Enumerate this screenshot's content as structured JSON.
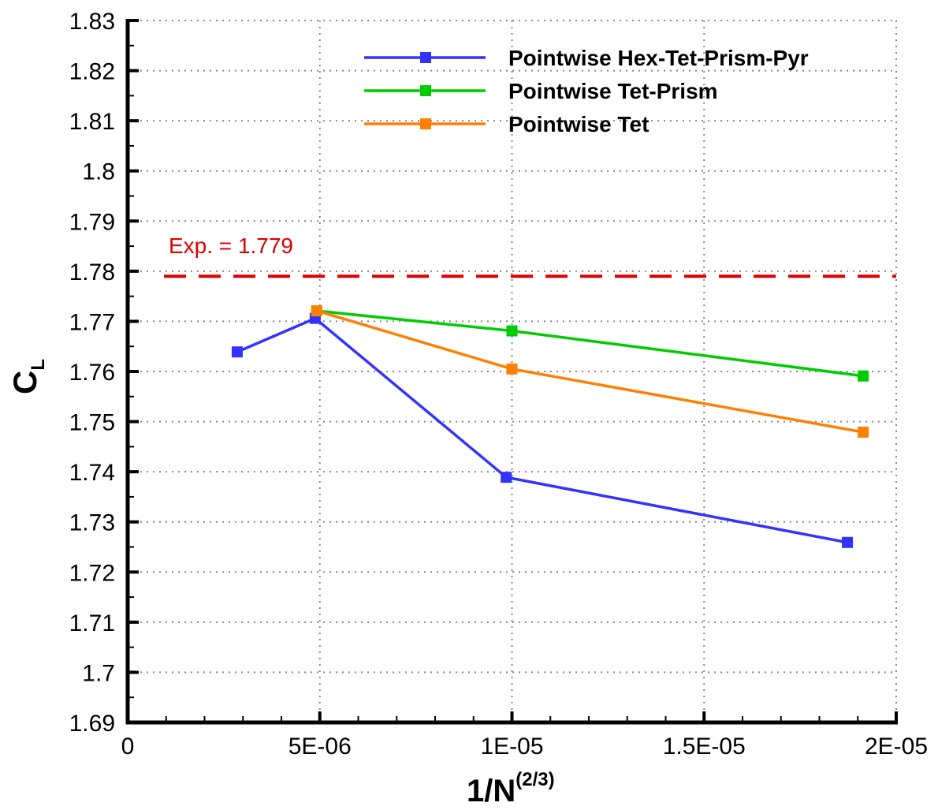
{
  "chart_data": {
    "type": "line",
    "xlabel_main": "1/N",
    "xlabel_sup": "(2/3)",
    "ylabel_main": "C",
    "ylabel_sub": "L",
    "xlim": [
      0,
      2e-05
    ],
    "ylim": [
      1.69,
      1.83
    ],
    "x_ticks": [
      0,
      5e-06,
      1e-05,
      1.5e-05,
      2e-05
    ],
    "x_tick_labels": [
      "0",
      "5E-06",
      "1E-05",
      "1.5E-05",
      "2E-05"
    ],
    "y_ticks": [
      1.69,
      1.7,
      1.71,
      1.72,
      1.73,
      1.74,
      1.75,
      1.76,
      1.77,
      1.78,
      1.79,
      1.8,
      1.81,
      1.82,
      1.83
    ],
    "y_tick_labels": [
      "1.69",
      "1.7",
      "1.71",
      "1.72",
      "1.73",
      "1.74",
      "1.75",
      "1.76",
      "1.77",
      "1.78",
      "1.79",
      "1.8",
      "1.81",
      "1.82",
      "1.83"
    ],
    "grid": true,
    "legend_position": "top-right",
    "series": [
      {
        "name": "Pointwise Hex-Tet-Prism-Pyr",
        "color": "#3333ff",
        "x": [
          2.85e-06,
          4.88e-06,
          9.85e-06,
          1.873e-05
        ],
        "y": [
          1.7639,
          1.7706,
          1.7389,
          1.7259
        ]
      },
      {
        "name": "Pointwise Tet-Prism",
        "color": "#00cc00",
        "x": [
          4.92e-06,
          1e-05,
          1.914e-05
        ],
        "y": [
          1.7721,
          1.7681,
          1.7591
        ]
      },
      {
        "name": "Pointwise Tet",
        "color": "#ff8000",
        "x": [
          4.92e-06,
          1e-05,
          1.914e-05
        ],
        "y": [
          1.7721,
          1.7605,
          1.7479
        ]
      }
    ],
    "reference_line": {
      "label": "Exp. = 1.779",
      "y": 1.779,
      "color": "#dd0000",
      "style": "dashed"
    }
  }
}
